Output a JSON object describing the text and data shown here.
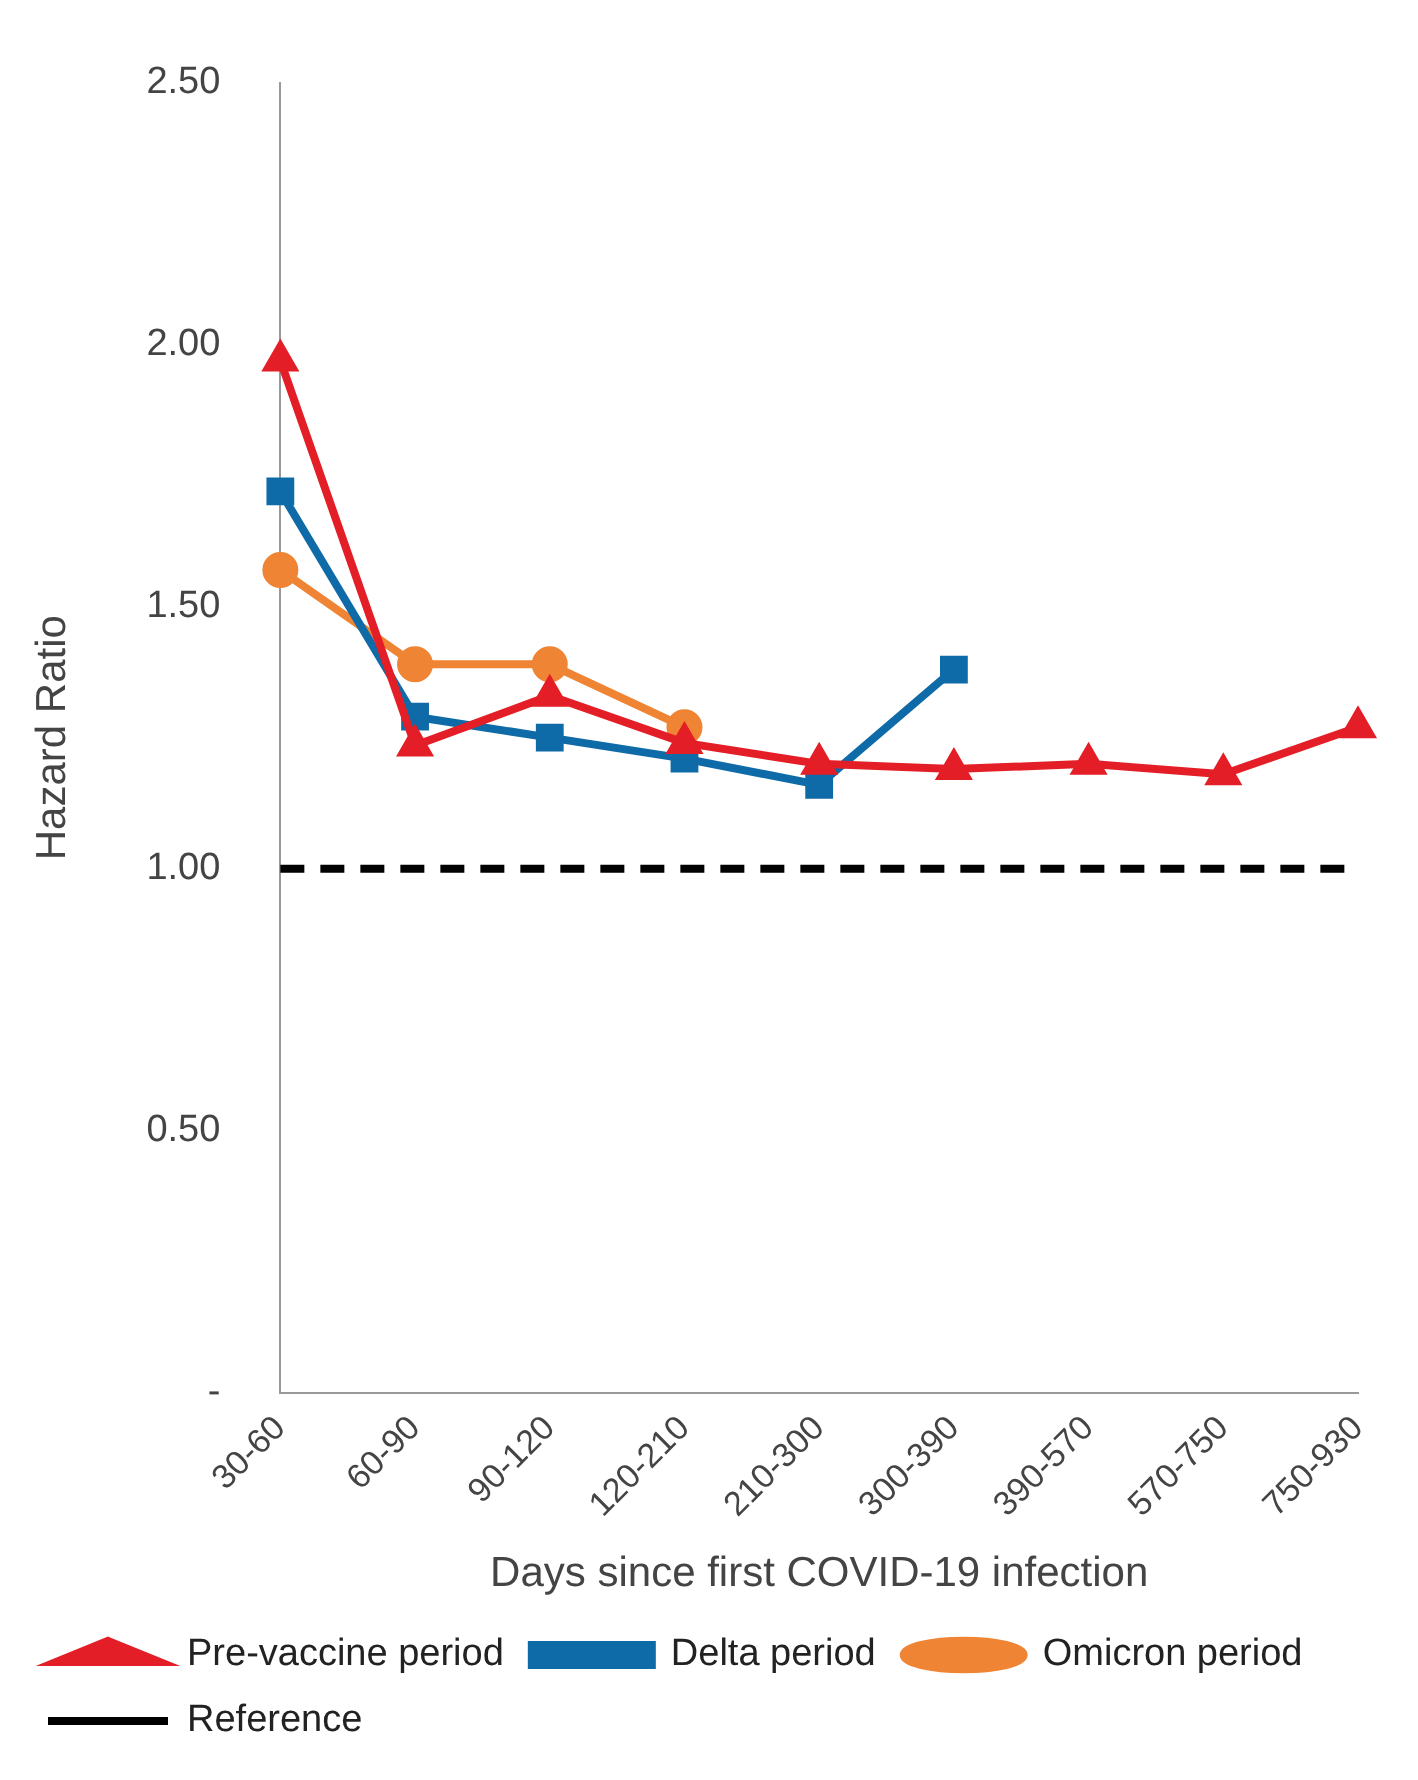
{
  "chart_data": {
    "type": "line",
    "xlabel": "Days since first COVID-19 infection",
    "ylabel": "Hazard Ratio",
    "categories": [
      "30-60",
      "60-90",
      "90-120",
      "120-210",
      "210-300",
      "300-390",
      "390-570",
      "570-750",
      "750-930"
    ],
    "series": [
      {
        "name": "Pre-vaccine period",
        "color": "#e41e26",
        "marker": "triangle",
        "values": [
          1.97,
          1.235,
          1.33,
          1.24,
          1.2,
          1.19,
          1.2,
          1.18,
          1.27
        ]
      },
      {
        "name": "Delta period",
        "color": "#0f6aa8",
        "marker": "square",
        "values": [
          1.72,
          1.29,
          1.25,
          1.21,
          1.16,
          1.38,
          null,
          null,
          null
        ]
      },
      {
        "name": "Omicron period",
        "color": "#ee8434",
        "marker": "circle",
        "values": [
          1.57,
          1.39,
          1.39,
          1.27,
          null,
          null,
          null,
          null,
          null
        ]
      },
      {
        "name": "Reference",
        "color": "#000000",
        "marker": "none",
        "line_style": "dashed",
        "values": [
          1,
          1,
          1,
          1,
          1,
          1,
          1,
          1,
          1
        ]
      }
    ],
    "ylim": [
      0,
      2.5
    ],
    "yticks": [
      {
        "value": 0,
        "label": "-"
      },
      {
        "value": 0.5,
        "label": "0.50"
      },
      {
        "value": 1,
        "label": "1.00"
      },
      {
        "value": 1.5,
        "label": "1.50"
      },
      {
        "value": 2,
        "label": "2.00"
      },
      {
        "value": 2.5,
        "label": "2.50"
      }
    ],
    "grid": false,
    "legend": "bottom"
  }
}
